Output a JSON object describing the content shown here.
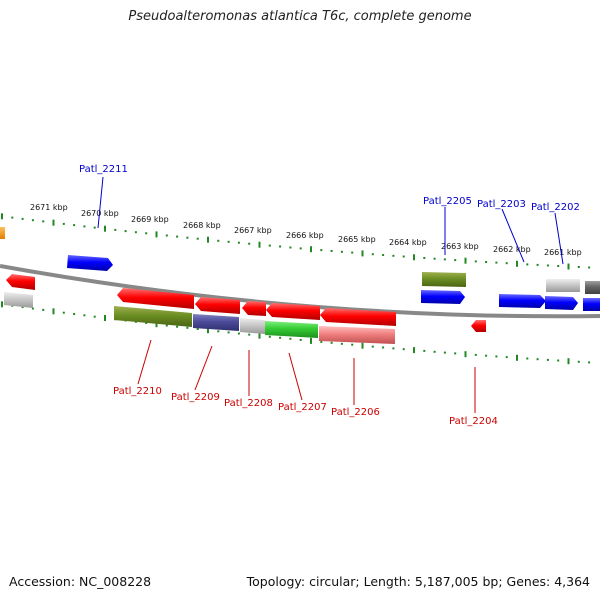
{
  "title": "Pseudoalteromonas atlantica T6c, complete genome",
  "footer": {
    "accession": "Accession: NC_008228",
    "summary": "Topology: circular; Length: 5,187,005 bp; Genes: 4,364"
  },
  "colors": {
    "forward_label": "#0000cc",
    "reverse_label": "#cc0000",
    "tick": "#228822",
    "backbone": "#888888"
  },
  "kbp_labels": [
    "2671 kbp",
    "2670 kbp",
    "2669 kbp",
    "2668 kbp",
    "2667 kbp",
    "2666 kbp",
    "2665 kbp",
    "2664 kbp",
    "2663 kbp",
    "2662 kbp",
    "2661 kbp"
  ],
  "forward_gene_labels": [
    "Patl_2211",
    "Patl_2205",
    "Patl_2203",
    "Patl_2202"
  ],
  "reverse_gene_labels": [
    "Patl_2210",
    "Patl_2209",
    "Patl_2208",
    "Patl_2207",
    "Patl_2206",
    "Patl_2204"
  ]
}
